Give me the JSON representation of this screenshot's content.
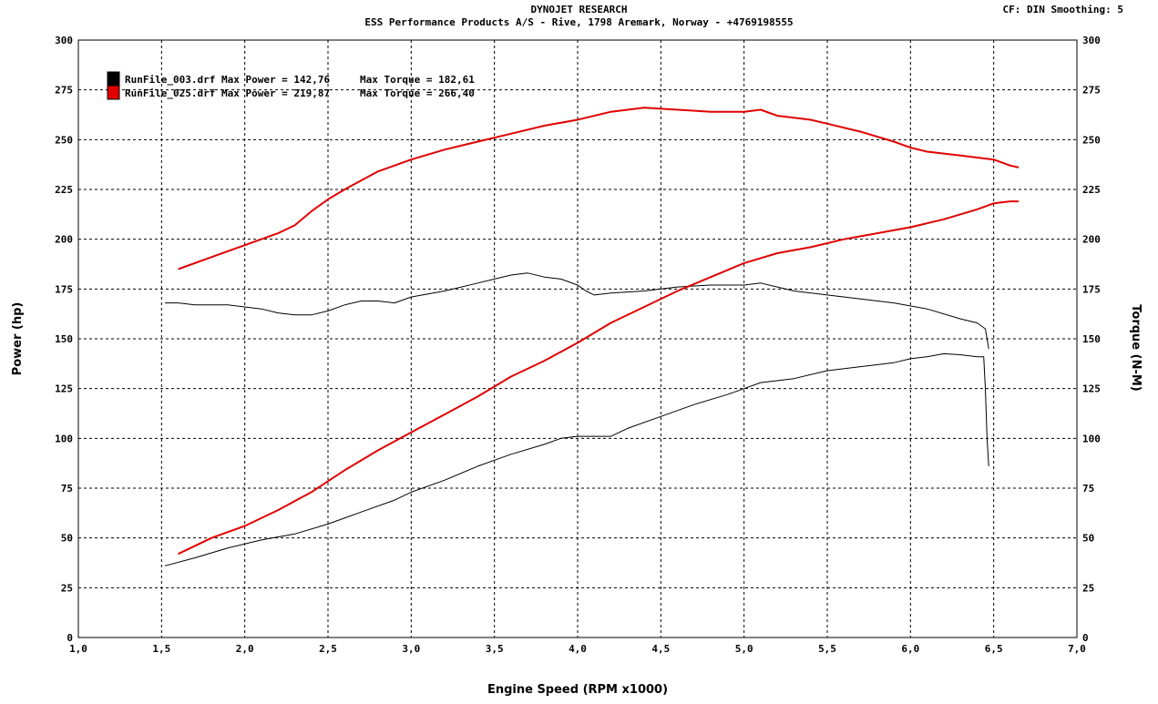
{
  "header": {
    "title": "DYNOJET RESEARCH",
    "subtitle": "ESS Performance Products A/S - Rive, 1798 Aremark, Norway - +4769198555",
    "cf_info": "CF: DIN  Smoothing: 5"
  },
  "chart_data": {
    "type": "line",
    "xlabel": "Engine Speed (RPM x1000)",
    "ylabel_left": "Power (hp)",
    "ylabel_right": "Torque (N-M)",
    "xlim": [
      1.0,
      7.0
    ],
    "ylim": [
      0,
      300
    ],
    "x_ticks": [
      "1,0",
      "1,5",
      "2,0",
      "2,5",
      "3,0",
      "3,5",
      "4,0",
      "4,5",
      "5,0",
      "5,5",
      "6,0",
      "6,5",
      "7,0"
    ],
    "y_ticks": [
      "0",
      "25",
      "50",
      "75",
      "100",
      "125",
      "150",
      "175",
      "200",
      "225",
      "250",
      "275",
      "300"
    ],
    "grid": true,
    "legend_position": "top-left",
    "legend": [
      {
        "file": "RunFile_003.drf",
        "power_label": "Max Power = 142,76",
        "torque_label": "Max Torque = 182,61",
        "color": "#000000"
      },
      {
        "file": "RunFile_025.drf",
        "power_label": "Max Power = 219,87",
        "torque_label": "Max Torque = 266,40",
        "color": "#e00000"
      }
    ],
    "series": [
      {
        "run": "RunFile_003.drf",
        "measure": "Power",
        "color": "#000000",
        "width": 1,
        "x": [
          1.52,
          1.7,
          1.9,
          2.1,
          2.3,
          2.5,
          2.7,
          2.9,
          3.0,
          3.2,
          3.4,
          3.6,
          3.8,
          3.9,
          4.0,
          4.1,
          4.2,
          4.3,
          4.5,
          4.7,
          4.9,
          5.0,
          5.1,
          5.3,
          5.5,
          5.7,
          5.9,
          6.0,
          6.1,
          6.2,
          6.3,
          6.4,
          6.44,
          6.45,
          6.46,
          6.47
        ],
        "y": [
          36,
          40,
          45,
          49,
          52,
          57,
          63,
          69,
          73,
          79,
          86,
          92,
          97,
          100,
          101,
          101,
          101,
          105,
          111,
          117,
          122,
          125,
          128,
          130,
          134,
          136,
          138,
          140,
          141,
          142.5,
          142,
          141,
          141,
          125,
          100,
          86
        ]
      },
      {
        "run": "RunFile_003.drf",
        "measure": "Torque",
        "color": "#000000",
        "width": 1,
        "x": [
          1.52,
          1.6,
          1.7,
          1.9,
          2.0,
          2.1,
          2.2,
          2.3,
          2.4,
          2.5,
          2.6,
          2.7,
          2.8,
          2.9,
          3.0,
          3.2,
          3.4,
          3.5,
          3.6,
          3.7,
          3.8,
          3.9,
          4.0,
          4.05,
          4.1,
          4.2,
          4.4,
          4.6,
          4.8,
          5.0,
          5.1,
          5.2,
          5.3,
          5.5,
          5.7,
          5.9,
          6.1,
          6.3,
          6.4,
          6.45,
          6.46,
          6.47
        ],
        "y": [
          168,
          168,
          167,
          167,
          166,
          165,
          163,
          162,
          162,
          164,
          167,
          169,
          169,
          168,
          171,
          174,
          178,
          180,
          182,
          183,
          181,
          180,
          177,
          174,
          172,
          173,
          174,
          176,
          177,
          177,
          178,
          176,
          174,
          172,
          170,
          168,
          165,
          160,
          158,
          155,
          150,
          145
        ]
      },
      {
        "run": "RunFile_025.drf",
        "measure": "Power",
        "color": "#e00000",
        "width": 2,
        "x": [
          1.6,
          1.8,
          2.0,
          2.2,
          2.4,
          2.6,
          2.8,
          3.0,
          3.2,
          3.4,
          3.6,
          3.8,
          4.0,
          4.2,
          4.4,
          4.6,
          4.8,
          5.0,
          5.2,
          5.4,
          5.6,
          5.8,
          6.0,
          6.2,
          6.4,
          6.5,
          6.6,
          6.65
        ],
        "y": [
          42,
          50,
          56,
          64,
          73,
          84,
          94,
          103,
          112,
          121,
          131,
          139,
          148,
          158,
          166,
          174,
          181,
          188,
          193,
          196,
          200,
          203,
          206,
          210,
          215,
          218,
          219,
          219
        ]
      },
      {
        "run": "RunFile_025.drf",
        "measure": "Torque",
        "color": "#e00000",
        "width": 2,
        "x": [
          1.6,
          1.8,
          2.0,
          2.2,
          2.3,
          2.4,
          2.5,
          2.6,
          2.8,
          3.0,
          3.2,
          3.4,
          3.6,
          3.8,
          4.0,
          4.2,
          4.4,
          4.6,
          4.8,
          5.0,
          5.1,
          5.2,
          5.3,
          5.4,
          5.5,
          5.7,
          5.9,
          6.0,
          6.1,
          6.2,
          6.3,
          6.4,
          6.5,
          6.6,
          6.65
        ],
        "y": [
          185,
          191,
          197,
          203,
          207,
          214,
          220,
          225,
          234,
          240,
          245,
          249,
          253,
          257,
          260,
          264,
          266,
          265,
          264,
          264,
          265,
          262,
          261,
          260,
          258,
          254,
          249,
          246,
          244,
          243,
          242,
          241,
          240,
          237,
          236
        ]
      }
    ]
  }
}
